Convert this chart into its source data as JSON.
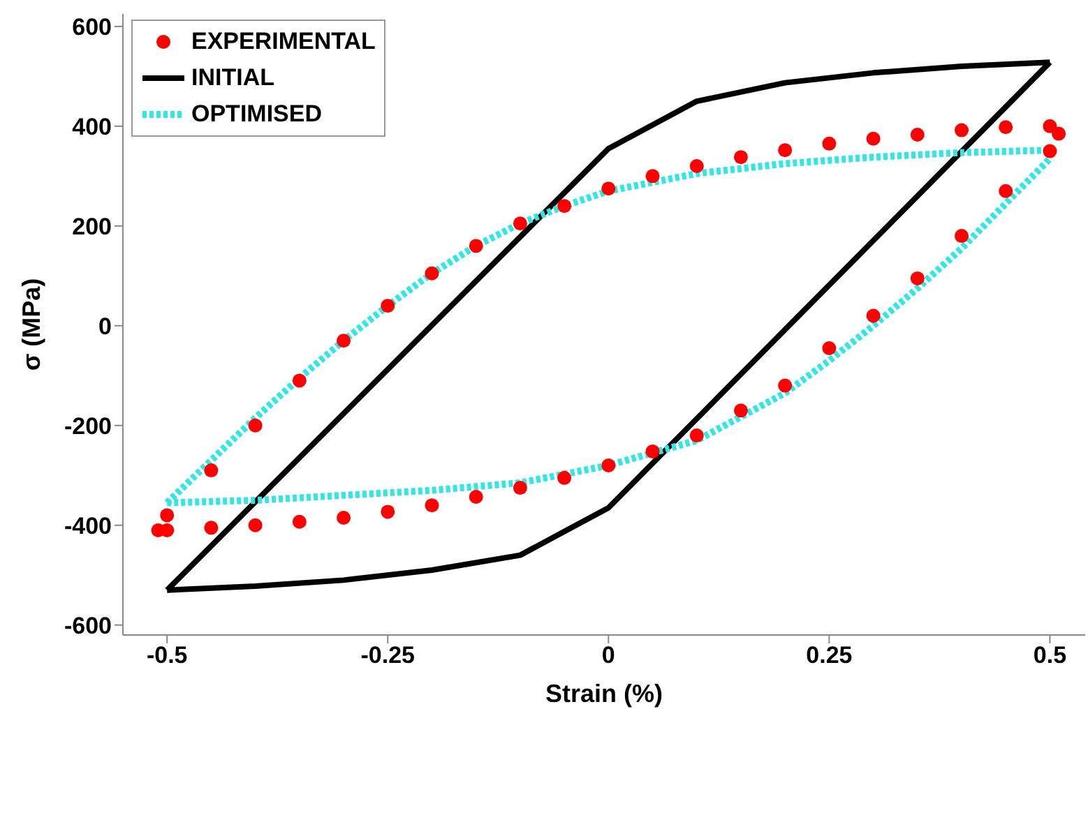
{
  "chart_data": {
    "type": "line",
    "xlabel": "Strain (%)",
    "ylabel": "σ (MPa)",
    "xlim": [
      -0.55,
      0.54
    ],
    "ylim": [
      -620,
      625
    ],
    "xticks": [
      -0.5,
      -0.25,
      0,
      0.25,
      0.5
    ],
    "yticks": [
      -600,
      -400,
      -200,
      0,
      200,
      400,
      600
    ],
    "grid": false,
    "legend": "top left",
    "series": [
      {
        "name": "EXPERIMENTAL",
        "type": "scatter",
        "marker": "circle",
        "color": "#ff0000",
        "x": [
          -0.51,
          -0.5,
          -0.45,
          -0.4,
          -0.35,
          -0.3,
          -0.25,
          -0.2,
          -0.15,
          -0.1,
          -0.05,
          0,
          0.05,
          0.1,
          0.15,
          0.2,
          0.25,
          0.3,
          0.35,
          0.4,
          0.45,
          0.5,
          0.51,
          0.5,
          0.45,
          0.4,
          0.35,
          0.3,
          0.25,
          0.2,
          0.15,
          0.1,
          0.05,
          0,
          -0.05,
          -0.1,
          -0.15,
          -0.2,
          -0.25,
          -0.3,
          -0.35,
          -0.4,
          -0.45,
          -0.5
        ],
        "values": [
          -410,
          -380,
          -290,
          -200,
          -110,
          -30,
          40,
          105,
          160,
          205,
          240,
          275,
          300,
          320,
          338,
          352,
          365,
          375,
          383,
          392,
          398,
          400,
          385,
          350,
          270,
          180,
          95,
          20,
          -45,
          -120,
          -170,
          -220,
          -252,
          -280,
          -305,
          -325,
          -343,
          -360,
          -373,
          -385,
          -393,
          -400,
          -405,
          -410
        ]
      },
      {
        "name": "INITIAL",
        "line_style": "solid",
        "color": "#000000",
        "x": [
          -0.5,
          0,
          0.1,
          0.2,
          0.3,
          0.4,
          0.5
        ],
        "values": [
          -530,
          355,
          450,
          487,
          507,
          520,
          528
        ]
      },
      {
        "line_style": "solid",
        "color": "#000000",
        "x": [
          -0.5,
          -0.4,
          -0.3,
          -0.2,
          -0.1,
          0,
          0.5
        ],
        "values": [
          -530,
          -522,
          -510,
          -490,
          -460,
          -365,
          528
        ]
      },
      {
        "name": "OPTIMISED",
        "line_style": "dotted",
        "color": "#33e6e6",
        "x": [
          -0.5,
          -0.45,
          -0.4,
          -0.35,
          -0.3,
          -0.25,
          -0.2,
          -0.15,
          -0.1,
          -0.05,
          0,
          0.1,
          0.2,
          0.3,
          0.4,
          0.5
        ],
        "values": [
          -355,
          -270,
          -185,
          -105,
          -30,
          40,
          105,
          160,
          205,
          240,
          270,
          305,
          325,
          338,
          347,
          352
        ]
      },
      {
        "line_style": "dotted",
        "color": "#33e6e6",
        "x": [
          -0.5,
          -0.4,
          -0.3,
          -0.2,
          -0.1,
          0,
          0.1,
          0.2,
          0.25,
          0.3,
          0.35,
          0.4,
          0.45,
          0.5
        ],
        "values": [
          -355,
          -350,
          -340,
          -330,
          -315,
          -280,
          -230,
          -135,
          -70,
          0,
          75,
          155,
          245,
          335
        ]
      }
    ]
  }
}
